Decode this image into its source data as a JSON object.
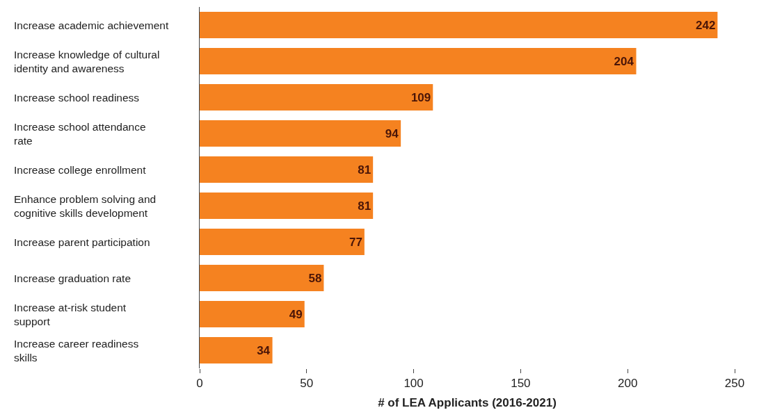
{
  "chart_data": {
    "type": "bar",
    "orientation": "horizontal",
    "xlabel": "# of LEA Applicants (2016-2021)",
    "categories": [
      "Increase academic achievement",
      "Increase knowledge of cultural identity and awareness",
      "Increase school readiness",
      "Increase school attendance rate",
      "Increase college enrollment",
      "Enhance problem solving and cognitive skills development",
      "Increase parent participation",
      "Increase graduation rate",
      "Increase at-risk student support",
      "Increase career readiness skills"
    ],
    "values": [
      242,
      204,
      109,
      94,
      81,
      81,
      77,
      58,
      49,
      34
    ],
    "color": "#f58220",
    "xlim": [
      0,
      250
    ],
    "xticks": [
      0,
      50,
      100,
      150,
      200,
      250
    ],
    "grid": false,
    "data_labels": true
  }
}
